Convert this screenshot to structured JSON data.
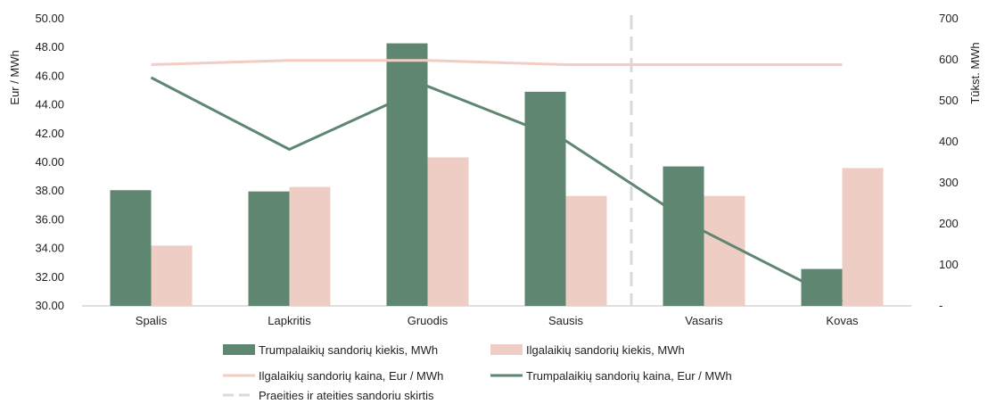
{
  "chart_data": {
    "type": "bar",
    "categories": [
      "Spalis",
      "Lapkritis",
      "Gruodis",
      "Sausis",
      "Vasaris",
      "Kovas"
    ],
    "y_left": {
      "label": "Eur / MWh",
      "ticks": [
        "30.00",
        "32.00",
        "34.00",
        "36.00",
        "38.00",
        "40.00",
        "42.00",
        "44.00",
        "46.00",
        "48.00",
        "50.00"
      ],
      "range": [
        30,
        50
      ]
    },
    "y_right": {
      "label": "Tūkst. MWh",
      "ticks": [
        "-",
        "100",
        "200",
        "300",
        "400",
        "500",
        "600",
        "700"
      ],
      "range": [
        0,
        700
      ]
    },
    "series": [
      {
        "name": "Trumpalaikių sandorių kiekis, MWh",
        "kind": "bar",
        "axis": "right",
        "color": "#5e8670",
        "values": [
          282,
          279,
          640,
          522,
          340,
          90
        ]
      },
      {
        "name": "Ilgalaikių sandorių kiekis, MWh",
        "kind": "bar",
        "axis": "right",
        "color": "#eecdc5",
        "values": [
          147,
          290,
          362,
          268,
          268,
          336
        ]
      },
      {
        "name": "Ilgalaikių sandorių kaina, Eur / MWh",
        "kind": "line",
        "axis": "left",
        "color": "#f3cdc3",
        "values": [
          46.8,
          47.1,
          47.1,
          46.8,
          46.8,
          46.8
        ]
      },
      {
        "name": "Trumpalaikių sandorių kaina, Eur / MWh",
        "kind": "line",
        "axis": "left",
        "color": "#5e8670",
        "values": [
          45.9,
          40.9,
          45.3,
          41.5,
          35.2,
          30.3
        ]
      }
    ],
    "divider": {
      "name": "Praeities ir ateities sandorių skirtis",
      "between": [
        "Sausis",
        "Vasaris"
      ],
      "color": "#d9d9d9"
    },
    "legend_position": "bottom"
  }
}
